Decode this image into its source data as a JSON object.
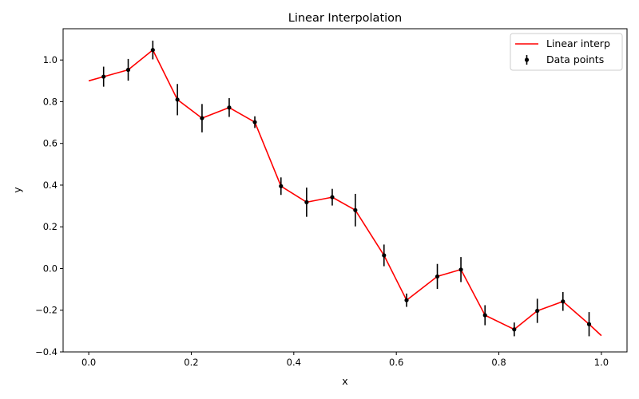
{
  "chart_data": {
    "type": "line",
    "title": "Linear Interpolation",
    "xlabel": "x",
    "ylabel": "y",
    "xlim": [
      -0.05,
      1.05
    ],
    "ylim": [
      -0.4,
      1.15
    ],
    "xticks": [
      0.0,
      0.2,
      0.4,
      0.6,
      0.8,
      1.0
    ],
    "xtick_labels": [
      "0.0",
      "0.2",
      "0.4",
      "0.6",
      "0.8",
      "1.0"
    ],
    "yticks": [
      -0.4,
      -0.2,
      0.0,
      0.2,
      0.4,
      0.6,
      0.8,
      1.0
    ],
    "ytick_labels": [
      "−0.4",
      "−0.2",
      "0.0",
      "0.2",
      "0.4",
      "0.6",
      "0.8",
      "1.0"
    ],
    "grid": false,
    "legend_position": "top-right",
    "interp_line": {
      "name": "Linear interp",
      "color": "#ff0000",
      "x": [
        0.0,
        0.029,
        0.077,
        0.125,
        0.173,
        0.221,
        0.274,
        0.324,
        0.375,
        0.425,
        0.475,
        0.52,
        0.576,
        0.62,
        0.68,
        0.726,
        0.773,
        0.83,
        0.875,
        0.925,
        0.976,
        1.0
      ],
      "y": [
        0.9,
        0.92,
        0.953,
        1.048,
        0.81,
        0.721,
        0.772,
        0.702,
        0.395,
        0.318,
        0.342,
        0.28,
        0.063,
        -0.152,
        -0.038,
        -0.005,
        -0.224,
        -0.292,
        -0.203,
        -0.158,
        -0.267,
        -0.322
      ]
    },
    "data_points": {
      "name": "Data points",
      "color": "#000000",
      "x": [
        0.029,
        0.077,
        0.125,
        0.173,
        0.221,
        0.274,
        0.324,
        0.375,
        0.425,
        0.475,
        0.52,
        0.576,
        0.62,
        0.68,
        0.726,
        0.773,
        0.83,
        0.875,
        0.925,
        0.976
      ],
      "y": [
        0.92,
        0.953,
        1.048,
        0.81,
        0.721,
        0.772,
        0.702,
        0.395,
        0.318,
        0.342,
        0.28,
        0.063,
        -0.152,
        -0.038,
        -0.005,
        -0.224,
        -0.292,
        -0.203,
        -0.158,
        -0.267
      ],
      "yerr": [
        0.048,
        0.052,
        0.045,
        0.075,
        0.068,
        0.045,
        0.028,
        0.042,
        0.07,
        0.04,
        0.078,
        0.052,
        0.032,
        0.06,
        0.06,
        0.048,
        0.033,
        0.058,
        0.045,
        0.058
      ]
    }
  }
}
